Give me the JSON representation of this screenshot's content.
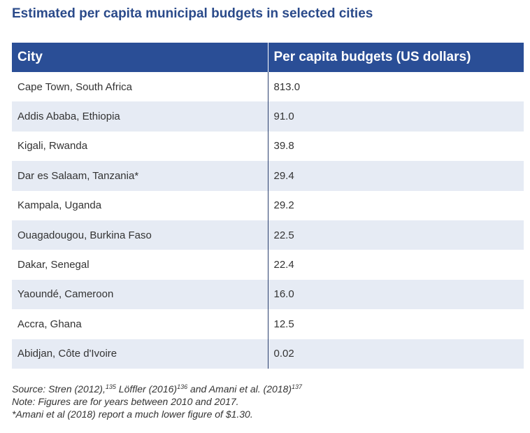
{
  "title": "Estimated per capita municipal budgets in selected cities",
  "table": {
    "headers": [
      "City",
      "Per capita budgets (US dollars)"
    ],
    "rows": [
      {
        "city": "Cape Town, South Africa",
        "value": "813.0"
      },
      {
        "city": "Addis Ababa, Ethiopia",
        "value": "91.0"
      },
      {
        "city": "Kigali, Rwanda",
        "value": "39.8"
      },
      {
        "city": "Dar es Salaam, Tanzania*",
        "value": "29.4"
      },
      {
        "city": "Kampala, Uganda",
        "value": "29.2"
      },
      {
        "city": "Ouagadougou, Burkina Faso",
        "value": "22.5"
      },
      {
        "city": "Dakar, Senegal",
        "value": "22.4"
      },
      {
        "city": "Yaoundé, Cameroon",
        "value": "16.0"
      },
      {
        "city": "Accra, Ghana",
        "value": "12.5"
      },
      {
        "city": "Abidjan, Côte d'Ivoire",
        "value": "0.02"
      }
    ]
  },
  "notes": {
    "source_parts": [
      "Source: Stren (2012),",
      "135",
      "  Löffler (2016)",
      "136",
      "  and Amani et al. (2018)",
      "137"
    ],
    "note": "Note: Figures are for years between 2010 and 2017.",
    "footnote": "*Amani et al (2018) report a much lower figure of $1.30."
  },
  "colors": {
    "title": "#2a4a8a",
    "header_bg": "#2a4e96",
    "alt_row_bg": "#e6ebf4"
  }
}
